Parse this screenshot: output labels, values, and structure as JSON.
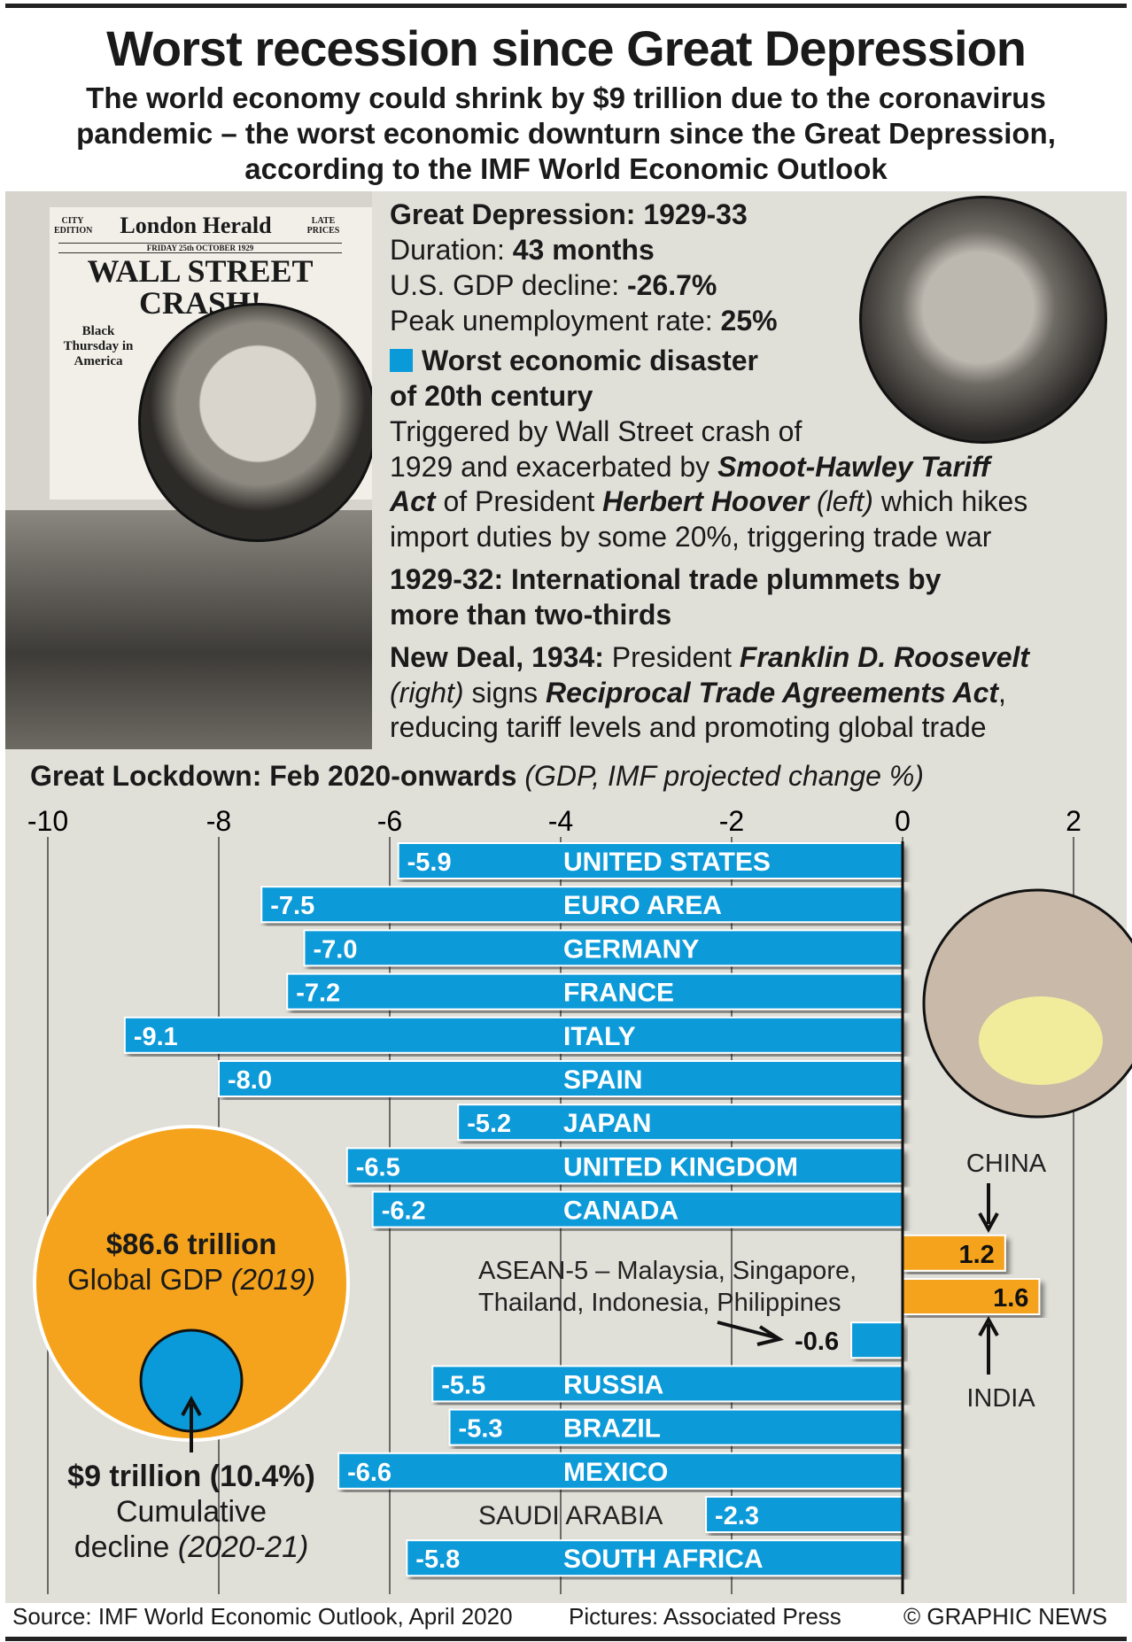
{
  "title": "Worst recession since Great Depression",
  "subtitle": [
    "The world economy could shrink by $9 trillion due to the coronavirus",
    "pandemic – the worst economic downturn since the Great Depression,",
    "according to the IMF World Economic Outlook"
  ],
  "newspaper": {
    "left": "CITY EDITION",
    "name": "London Herald",
    "right": "LATE PRICES",
    "date": "FRIDAY 25th OCTOBER 1929",
    "headline1": "WALL STREET",
    "headline2": "CRASH!",
    "sub": "Black Thursday in America"
  },
  "gd": {
    "heading": "Great Depression: 1929-33",
    "duration_label": "Duration: ",
    "duration": "43 months",
    "gdp_label": "U.S. GDP decline: ",
    "gdp": "-26.7%",
    "unemp_label": "Peak unemployment rate: ",
    "unemp": "25%",
    "worst1": "Worst economic disaster",
    "worst2": "of 20th century",
    "p1a": "Triggered by Wall Street crash of",
    "p1b": "1929 and exacerbated by ",
    "p1b_em": "Smoot-Hawley Tariff",
    "p1c_em": "Act",
    "p1c": " of President ",
    "p1c_em2": "Herbert Hoover",
    "p1c_i": " (left)",
    "p1c_end": " which hikes",
    "p1d": "import duties by some 20%, triggering trade war",
    "trade1": "1929-32: International trade plummets by",
    "trade2": "more than two-thirds",
    "nd_label": "New Deal, 1934:",
    "nd_a": " President ",
    "nd_em": "Franklin D. Roosevelt",
    "nd_i": "(right)",
    "nd_b": " signs ",
    "nd_em2": "Reciprocal Trade Agreements Act",
    "nd_c": ",",
    "nd_d": "reducing tariff levels and promoting global trade"
  },
  "colors": {
    "bar": "#0a9ad9",
    "positive": "#f5a31c",
    "panel": "#e0dfd8"
  },
  "chart_data": {
    "type": "bar",
    "title": "Great Lockdown: Feb 2020-onwards",
    "title_note": "(GDP, IMF projected change %)",
    "xlim": [
      -10,
      2
    ],
    "ticks": [
      "-10",
      "-8",
      "-6",
      "-4",
      "-2",
      "0",
      "2"
    ],
    "categories": [
      "UNITED STATES",
      "EURO AREA",
      "GERMANY",
      "FRANCE",
      "ITALY",
      "SPAIN",
      "JAPAN",
      "UNITED KINGDOM",
      "CANADA",
      "CHINA",
      "INDIA",
      "ASEAN-5",
      "RUSSIA",
      "BRAZIL",
      "MEXICO",
      "SAUDI ARABIA",
      "SOUTH AFRICA"
    ],
    "values": [
      -5.9,
      -7.5,
      -7.0,
      -7.2,
      -9.1,
      -8.0,
      -5.2,
      -6.5,
      -6.2,
      1.2,
      1.6,
      -0.6,
      -5.5,
      -5.3,
      -6.6,
      -2.3,
      -5.8
    ],
    "value_labels": [
      "-5.9",
      "-7.5",
      "-7.0",
      "-7.2",
      "-9.1",
      "-8.0",
      "-5.2",
      "-6.5",
      "-6.2",
      "1.2",
      "1.6",
      "-0.6",
      "-5.5",
      "-5.3",
      "-6.6",
      "-2.3",
      "-5.8"
    ],
    "asean_note": [
      "ASEAN-5 – Malaysia, Singapore,",
      "Thailand, Indonesia, Philippines"
    ]
  },
  "gdp_circle": {
    "total": "$86.6 trillion",
    "total_label": "Global GDP ",
    "total_year": "(2019)",
    "decline": "$9 trillion (10.4%)",
    "decline_label": "Cumulative",
    "decline_label2": "decline ",
    "decline_years": "(2020-21)"
  },
  "footer": {
    "source": "Source: IMF World Economic Outlook, April 2020",
    "pictures": "Pictures: Associated Press",
    "credit": "© GRAPHIC NEWS"
  }
}
